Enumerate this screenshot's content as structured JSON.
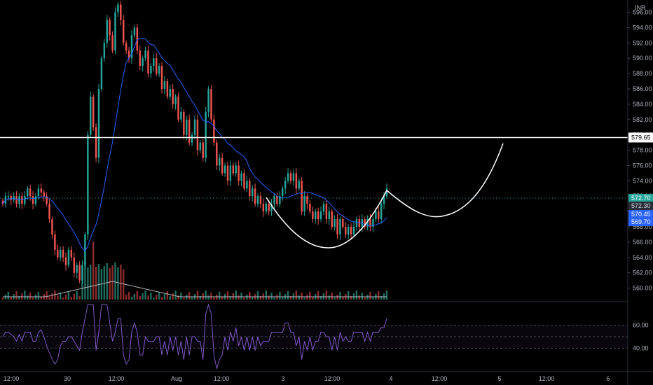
{
  "currency": "INR",
  "chart_data": {
    "type": "candlestick",
    "price_axis": {
      "ylim": [
        558.5,
        597.6
      ],
      "ticks": [
        560,
        562,
        564,
        566,
        568,
        570,
        572,
        574,
        576,
        578,
        580,
        582,
        584,
        586,
        588,
        590,
        592,
        594,
        596
      ]
    },
    "time_axis": {
      "labels": [
        "12:00",
        "30",
        "12:00",
        "Aug",
        "12:00",
        "3",
        "12:00",
        "4",
        "12:00",
        "5",
        "12:00",
        "6"
      ]
    },
    "horizontal_line": {
      "value": 579.65,
      "label": "579.65"
    },
    "price_tags": [
      {
        "label": "572.70",
        "color": "#26a69a",
        "text_color": "#ffffff"
      },
      {
        "label": "572.30",
        "color": "#2a2e39",
        "text_color": "#d1d4dc"
      },
      {
        "label": "570.45",
        "color": "#2962ff",
        "text_color": "#ffffff"
      },
      {
        "label": "569.70",
        "color": "#2962ff",
        "text_color": "#ffffff"
      }
    ],
    "candles_close": [
      571,
      572,
      572,
      571.5,
      572,
      571,
      572,
      571,
      572,
      573,
      572,
      571,
      572,
      573,
      572.5,
      572,
      571,
      569,
      567,
      565,
      564,
      565,
      564,
      563,
      565,
      564,
      562,
      563,
      561,
      563,
      567,
      580,
      585,
      581,
      577,
      586,
      590,
      592,
      595,
      593,
      591,
      596,
      597,
      595,
      592,
      591,
      590,
      593,
      594,
      591,
      589,
      590,
      591,
      588,
      589,
      590,
      588,
      589,
      586,
      587,
      585,
      586,
      584,
      585,
      582,
      583,
      580,
      582,
      579,
      580,
      582,
      578,
      579,
      577,
      583,
      586,
      582,
      579,
      576,
      577,
      575,
      576,
      574,
      576,
      575,
      576,
      574,
      575,
      573,
      574,
      572,
      573,
      571,
      572,
      571,
      570,
      571,
      570,
      571,
      572,
      571,
      572,
      573,
      574,
      575,
      574,
      575,
      573,
      574,
      570,
      572,
      571,
      570,
      569,
      570,
      569,
      570,
      571,
      569,
      570,
      568,
      569,
      567,
      569,
      568,
      567,
      568,
      567,
      568,
      569,
      568,
      569,
      568,
      569,
      568,
      569,
      570,
      569,
      571,
      572,
      573
    ],
    "overlay_ma": {
      "color": "#2962ff"
    },
    "volume": {
      "ma_color": "#b2b5be",
      "up_color": "#1f6b5d",
      "down_color": "#8b2a2a"
    },
    "rsi": {
      "levels": [
        "60.00",
        "40.00"
      ],
      "color": "#7e57c2"
    },
    "drawing": {
      "pattern": "cup-and-handle",
      "color": "#ffffff"
    }
  }
}
